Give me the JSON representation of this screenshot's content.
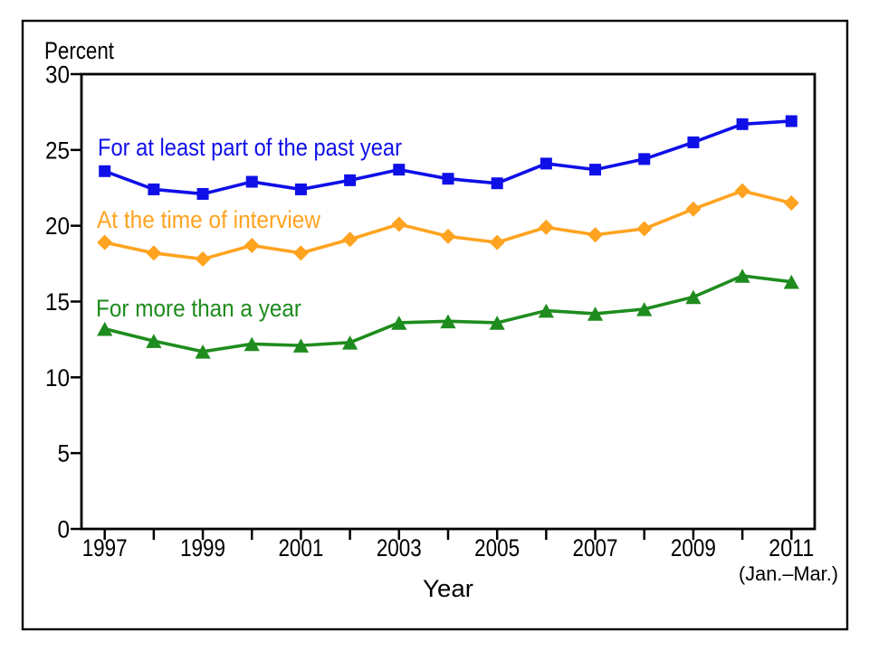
{
  "page": {
    "background": "#ffffff",
    "frame_border_color": "#000000"
  },
  "chart_data": {
    "type": "line",
    "title": "",
    "ylabel": "Percent",
    "xlabel": "Year",
    "x_axis_note": "(Jan.–Mar.)",
    "x": [
      1997,
      1998,
      1999,
      2000,
      2001,
      2002,
      2003,
      2004,
      2005,
      2006,
      2007,
      2008,
      2009,
      2010,
      2011
    ],
    "xticks_labeled": [
      "1997",
      "1999",
      "2001",
      "2003",
      "2005",
      "2007",
      "2009",
      "2011"
    ],
    "yticks": [
      0,
      5,
      10,
      15,
      20,
      25,
      30
    ],
    "ylim": [
      0,
      30
    ],
    "xlim": [
      1996.5,
      2011.5
    ],
    "grid": false,
    "legend_position": "inline-labels-left",
    "axis_color": "#000000",
    "series": [
      {
        "name": "For at least part of the past year",
        "marker": "square",
        "color": "#0f0fe8",
        "values": [
          23.6,
          22.4,
          22.1,
          22.9,
          22.4,
          23.0,
          23.7,
          23.1,
          22.8,
          24.1,
          23.7,
          24.4,
          25.5,
          26.7,
          26.9
        ]
      },
      {
        "name": "At the time of interview",
        "marker": "diamond",
        "color": "#ffa320",
        "values": [
          18.9,
          18.2,
          17.8,
          18.7,
          18.2,
          19.1,
          20.1,
          19.3,
          18.9,
          19.9,
          19.4,
          19.8,
          21.1,
          22.3,
          21.5
        ]
      },
      {
        "name": "For more than a year",
        "marker": "triangle",
        "color": "#1e8c1e",
        "values": [
          13.2,
          12.4,
          11.7,
          12.2,
          12.1,
          12.3,
          13.6,
          13.7,
          13.6,
          14.4,
          14.2,
          14.5,
          15.3,
          16.7,
          16.3
        ]
      }
    ]
  }
}
